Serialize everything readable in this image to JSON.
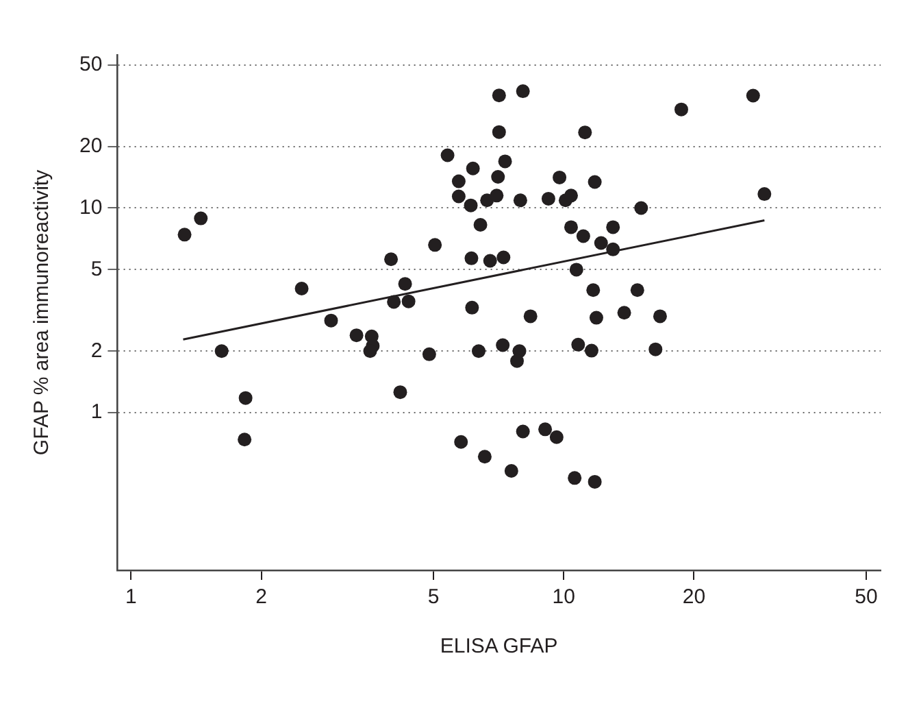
{
  "chart_data": {
    "type": "scatter",
    "xlabel": "ELISA GFAP",
    "ylabel": "GFAP % area immunoreactivity",
    "log": "xy",
    "grid": "y",
    "legend": false,
    "marker": "circle",
    "line_style": "solid",
    "xlim": [
      0.93,
      54
    ],
    "xticks": [
      1,
      2,
      5,
      10,
      20,
      50
    ],
    "ylim": [
      0.17,
      56
    ],
    "yticks": [
      1,
      2,
      5,
      10,
      20,
      50
    ],
    "series": [
      {
        "color": "#231f20",
        "x": [
          1.33,
          1.45,
          2.48,
          2.9,
          3.32,
          3.6,
          3.62,
          3.57,
          3.99,
          4.3,
          4.05,
          4.38,
          5.04,
          5.39,
          5.72,
          5.72,
          1.62,
          1.84,
          1.83,
          4.89,
          4.19,
          5.79,
          6.17,
          6.1,
          6.42,
          6.12,
          6.76,
          7.26,
          6.65,
          7.0,
          7.05,
          7.32,
          7.09,
          7.09,
          8.05,
          7.94,
          9.22,
          9.78,
          10.1,
          10.4,
          11.2,
          11.8,
          10.4,
          11.1,
          12.2,
          13.0,
          13.0,
          15.1,
          10.7,
          11.7,
          14.8,
          6.14,
          8.38,
          11.9,
          13.8,
          16.7,
          18.7,
          27.4,
          29.1,
          6.36,
          7.23,
          7.9,
          7.8,
          10.8,
          11.6,
          16.3,
          6.57,
          7.57,
          8.05,
          9.06,
          9.63,
          10.6,
          11.8
        ],
        "values": [
          7.41,
          8.9,
          4.04,
          2.82,
          2.39,
          2.36,
          2.12,
          2.0,
          5.62,
          4.26,
          3.48,
          3.5,
          6.6,
          18.1,
          13.5,
          11.4,
          2.0,
          1.18,
          0.74,
          1.93,
          1.26,
          0.72,
          15.6,
          10.3,
          8.28,
          5.68,
          5.52,
          5.74,
          10.9,
          11.5,
          14.2,
          16.9,
          23.5,
          35.5,
          37.2,
          10.9,
          11.1,
          14.1,
          10.9,
          11.5,
          23.4,
          13.4,
          8.06,
          7.29,
          6.75,
          8.06,
          6.28,
          10.0,
          5.0,
          3.97,
          3.97,
          3.26,
          2.96,
          2.91,
          3.08,
          2.96,
          30.3,
          35.4,
          11.7,
          2.0,
          2.14,
          2.0,
          1.79,
          2.15,
          2.01,
          2.04,
          0.61,
          0.52,
          0.81,
          0.83,
          0.76,
          0.48,
          0.46
        ]
      },
      {
        "type": "line",
        "marker": "none",
        "color": "#231f20",
        "x": [
          1.32,
          29.1
        ],
        "values": [
          2.28,
          8.7
        ]
      }
    ]
  }
}
